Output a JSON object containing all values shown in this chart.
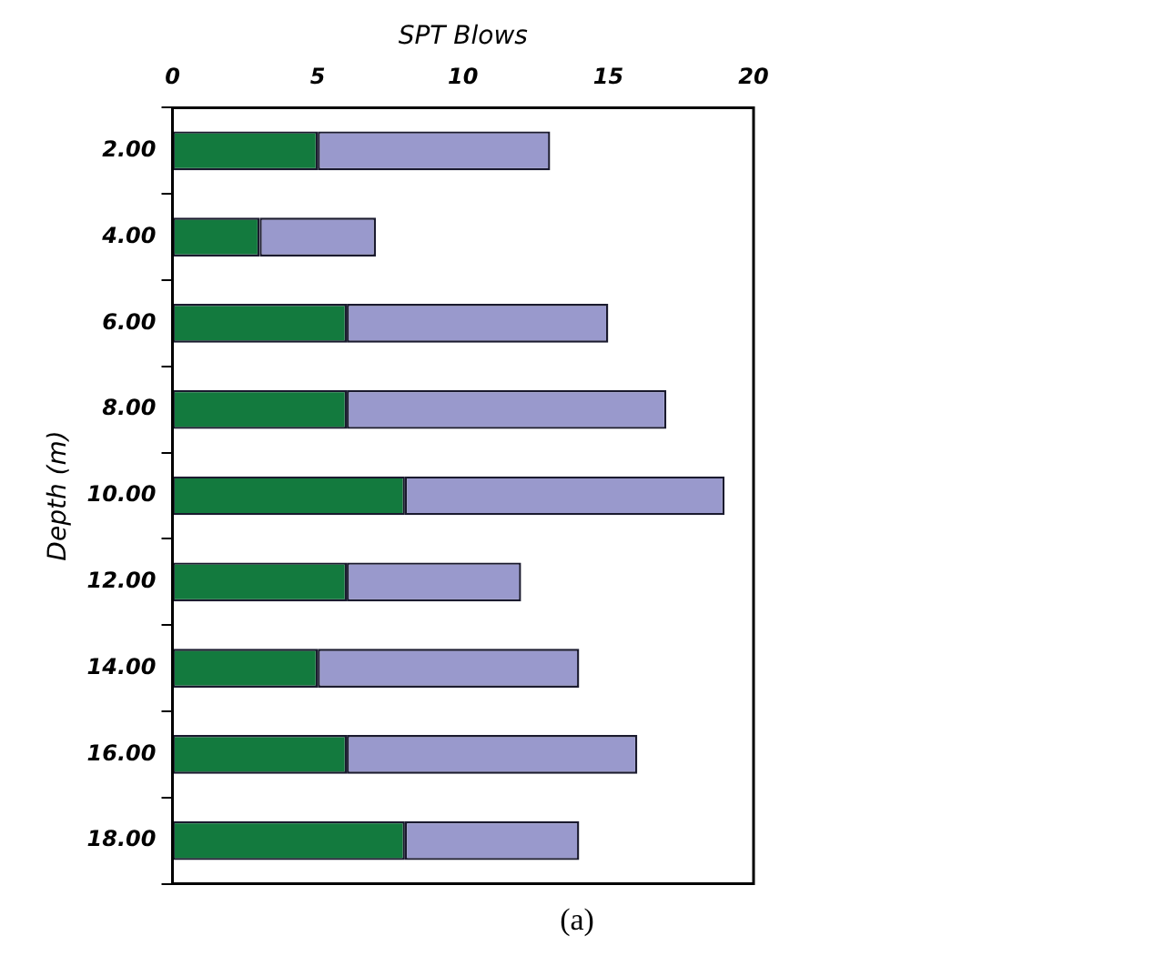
{
  "chart_data": {
    "type": "bar",
    "orientation": "horizontal",
    "stacked": true,
    "xlabel": "SPT Blows",
    "ylabel": "Depth (m)",
    "categories": [
      "2.00",
      "4.00",
      "6.00",
      "8.00",
      "10.00",
      "12.00",
      "14.00",
      "16.00",
      "18.00"
    ],
    "series": [
      {
        "color": "#137a3e",
        "values": [
          5,
          3,
          6,
          6,
          8,
          6,
          5,
          6,
          8
        ]
      },
      {
        "color": "#9999cc",
        "values": [
          8,
          4,
          9,
          11,
          11,
          6,
          9,
          10,
          6
        ]
      }
    ],
    "xlim": [
      0,
      20
    ],
    "xticks": [
      0,
      5,
      10,
      15,
      20
    ],
    "grid": false,
    "legend": false,
    "annotations": [
      "(a)"
    ]
  }
}
